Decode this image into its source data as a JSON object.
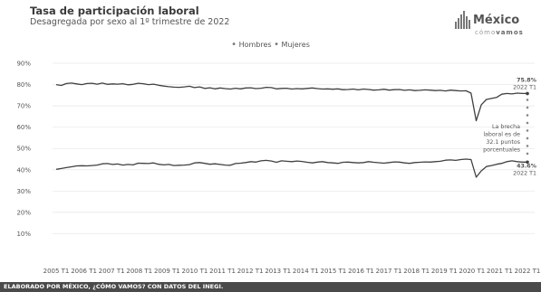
{
  "header": {
    "title": "Tasa de participación laboral",
    "subtitle": "Desagregada por sexo al 1º trimestre de 2022"
  },
  "logo": {
    "name": "México",
    "sub_prefix": "cómo",
    "sub_suffix": "vamos"
  },
  "legend": {
    "items": [
      "Hombres",
      "Mujeres"
    ]
  },
  "footer": {
    "text": "ELABORADO POR MÉXICO, ¿CÓMO VAMOS? CON DATOS DEL INEGI."
  },
  "annotations": {
    "hombres_value": "75.8%",
    "hombres_date": "2022 T1",
    "mujeres_value": "43.6%",
    "mujeres_date": "2022 T1",
    "gap_lines": [
      "La brecha",
      "laboral es de",
      "32.1 puntos",
      "porcentuales"
    ]
  },
  "colors": {
    "line": "#404040",
    "grid": "#e6e6e6",
    "gap_dots": "#8a8a8a",
    "footer_bg": "#4a4a4a"
  },
  "chart_data": {
    "type": "line",
    "title": "Tasa de participación laboral",
    "subtitle": "Desagregada por sexo al 1º trimestre de 2022",
    "xlabel": "",
    "ylabel": "",
    "ylim": [
      0,
      90
    ],
    "yticks": [
      "10%",
      "20%",
      "30%",
      "40%",
      "50%",
      "60%",
      "70%",
      "80%",
      "90%"
    ],
    "xticks": [
      "2005 T1",
      "2006 T1",
      "2007 T1",
      "2008 T1",
      "2009 T1",
      "2010 T1",
      "2011 T1",
      "2012 T1",
      "2013 T1",
      "2014 T1",
      "2015 T1",
      "2016 T1",
      "2017 T1",
      "2018 T1",
      "2019 T1",
      "2020 T1",
      "2021 T1",
      "2022 T1"
    ],
    "grid": true,
    "legend_position": "top-center",
    "x_start": "2005 T1",
    "x_end": "2022 T1",
    "series": [
      {
        "name": "Hombres",
        "values": [
          80.0,
          79.6,
          80.5,
          80.7,
          80.3,
          80.0,
          80.5,
          80.6,
          80.2,
          80.7,
          80.1,
          80.3,
          80.2,
          80.4,
          79.9,
          80.1,
          80.6,
          80.4,
          80.0,
          80.2,
          79.7,
          79.3,
          79.0,
          78.8,
          78.7,
          78.9,
          79.2,
          78.6,
          78.9,
          78.2,
          78.5,
          78.0,
          78.4,
          78.1,
          77.9,
          78.3,
          78.0,
          78.4,
          78.5,
          78.1,
          78.3,
          78.7,
          78.6,
          78.0,
          78.2,
          78.3,
          77.9,
          78.1,
          78.0,
          78.2,
          78.4,
          78.1,
          77.9,
          78.0,
          77.8,
          78.0,
          77.6,
          77.7,
          77.9,
          77.5,
          77.9,
          77.7,
          77.4,
          77.5,
          77.8,
          77.4,
          77.6,
          77.7,
          77.3,
          77.5,
          77.2,
          77.3,
          77.5,
          77.4,
          77.2,
          77.3,
          77.0,
          77.4,
          77.2,
          77.0,
          77.1,
          76.0,
          63.0,
          70.5,
          73.0,
          73.5,
          74.0,
          75.5,
          75.8,
          75.6,
          76.0,
          75.8,
          75.8
        ]
      },
      {
        "name": "Mujeres",
        "values": [
          40.2,
          40.6,
          41.0,
          41.4,
          41.8,
          41.9,
          41.8,
          42.0,
          42.2,
          42.8,
          42.9,
          42.5,
          42.7,
          42.2,
          42.5,
          42.3,
          43.1,
          43.0,
          42.9,
          43.2,
          42.6,
          42.3,
          42.5,
          42.0,
          42.1,
          42.2,
          42.4,
          43.2,
          43.4,
          43.0,
          42.6,
          42.8,
          42.5,
          42.2,
          42.1,
          42.9,
          43.1,
          43.4,
          43.8,
          43.6,
          44.2,
          44.4,
          44.1,
          43.5,
          44.2,
          44.0,
          43.8,
          44.1,
          43.9,
          43.5,
          43.2,
          43.6,
          43.8,
          43.4,
          43.2,
          43.0,
          43.5,
          43.6,
          43.4,
          43.2,
          43.4,
          43.8,
          43.5,
          43.3,
          43.1,
          43.4,
          43.7,
          43.6,
          43.2,
          43.0,
          43.4,
          43.5,
          43.7,
          43.6,
          43.8,
          44.0,
          44.5,
          44.6,
          44.4,
          44.8,
          45.0,
          44.8,
          36.5,
          39.5,
          41.5,
          42.0,
          42.6,
          43.0,
          43.8,
          44.2,
          43.8,
          43.6,
          43.6
        ]
      }
    ]
  }
}
